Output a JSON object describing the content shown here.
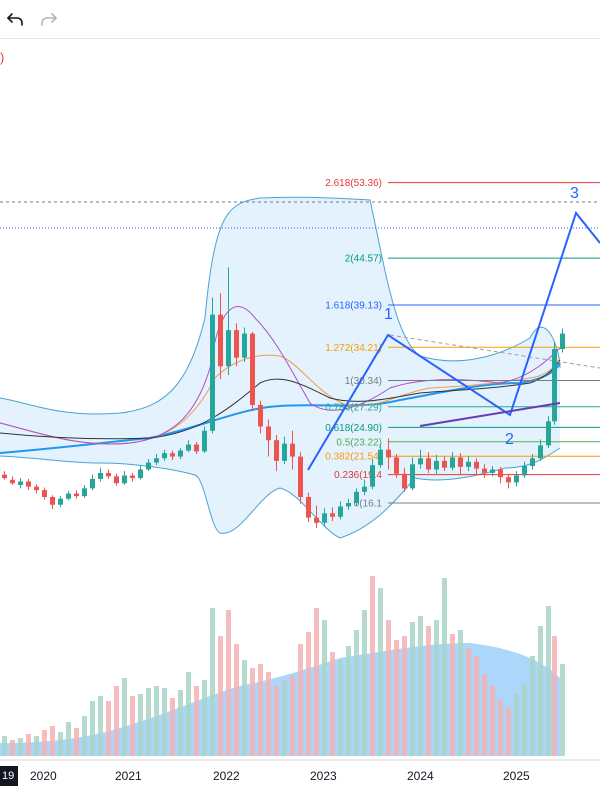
{
  "toolbar": {
    "undo_icon": "undo-arrow-icon",
    "redo_icon": "redo-arrow-icon",
    "redo_color": "#b2b5be"
  },
  "axis": {
    "current_year_tag": "19",
    "years": [
      "2020",
      "2021",
      "2022",
      "2023",
      "2024",
      "2025"
    ]
  },
  "fib_levels": [
    {
      "label": "2.618(53.36)",
      "value": 53.36,
      "color": "#e53935"
    },
    {
      "label": "2(44.57)",
      "value": 44.57,
      "color": "#089981"
    },
    {
      "label": "1.618(39.13)",
      "value": 39.13,
      "color": "#2962ff"
    },
    {
      "label": "1.272(34.21)",
      "value": 34.21,
      "color": "#f59f00"
    },
    {
      "label": "1(30.34)",
      "value": 30.34,
      "color": "#787b86"
    },
    {
      "label": "0.786(27.29)",
      "value": 27.29,
      "color": "#22ab94"
    },
    {
      "label": "0.618(24.90)",
      "value": 24.9,
      "color": "#089981"
    },
    {
      "label": "0.5(23.22)",
      "value": 23.22,
      "color": "#4caf50"
    },
    {
      "label": "0.382(21.54)",
      "value": 21.54,
      "color": "#ff9800"
    },
    {
      "label": "0.236(19.4",
      "value": 19.4,
      "color": "#e53935"
    },
    {
      "label": "0(16.1",
      "value": 16.1,
      "color": "#787b86"
    }
  ],
  "wave_labels": [
    "1",
    "2",
    "3"
  ],
  "colors": {
    "up": "#26a69a",
    "down": "#ef5350",
    "bb_fill": "#e3f2fd",
    "bb_line": "#4aa3d6",
    "ma_slow": "#2196f3",
    "ma_mid": "#f29b4b",
    "ma_purple": "#b04fc2",
    "ma_black": "#333333",
    "wave": "#2962ff",
    "volume_ma_fill": "#90caf9"
  },
  "top_left_marker": ")",
  "top_left_marker_color": "#e53935"
}
